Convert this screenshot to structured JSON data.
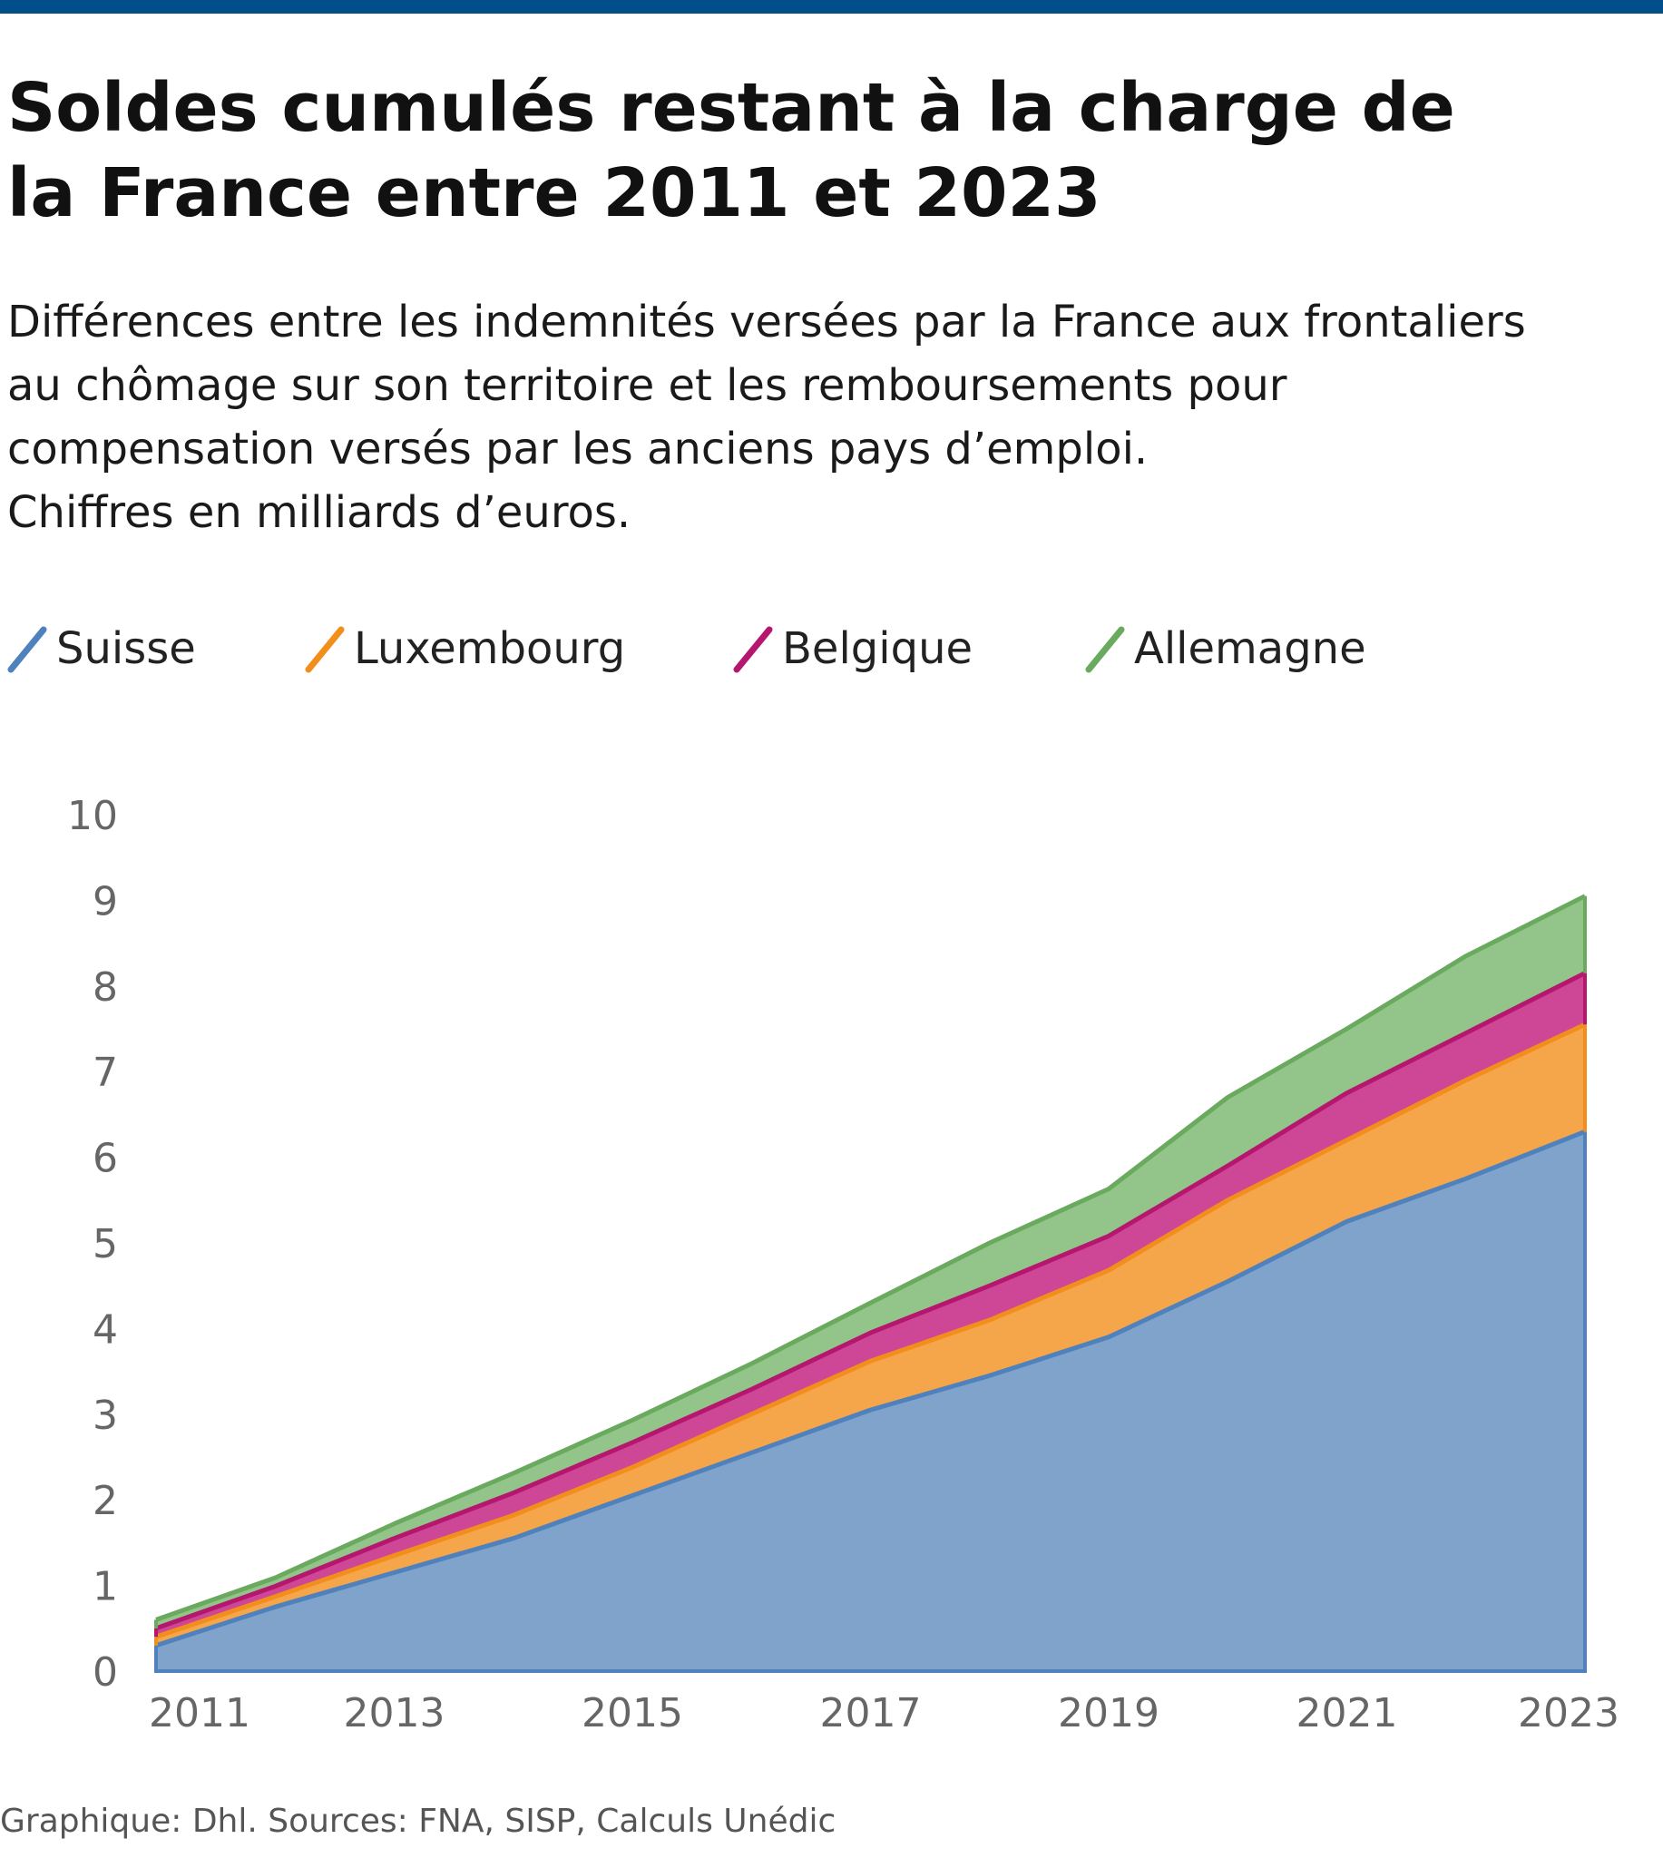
{
  "title_line1": "Soldes cumulés restant à la charge de",
  "title_line2": "la France entre 2011 et 2023",
  "subtitle_lines": [
    "Différences entre les indemnités versées par la France aux frontaliers",
    "au chômage sur son territoire et les remboursements pour",
    "compensation versés par les anciens pays d’emploi.",
    "Chiffres en milliards d’euros."
  ],
  "source": "Graphique: Dhl. Sources:  FNA, SISP, Calculs Unédic",
  "chart_data": {
    "type": "area",
    "stacked": true,
    "x": [
      2011,
      2012,
      2013,
      2014,
      2015,
      2016,
      2017,
      2018,
      2019,
      2020,
      2021,
      2022,
      2023
    ],
    "xticks": [
      "2011",
      "2013",
      "2015",
      "2017",
      "2019",
      "2021",
      "2023"
    ],
    "yticks": [
      "0",
      "1",
      "2",
      "3",
      "4",
      "5",
      "6",
      "7",
      "8",
      "9",
      "10"
    ],
    "ylim": [
      0,
      10
    ],
    "xlim": [
      2011,
      2023
    ],
    "legend_position": "top",
    "grid": false,
    "series": [
      {
        "name": "Suisse",
        "color": "#4f81bd",
        "fill": "#7fa3cb",
        "values": [
          0.3,
          0.75,
          1.15,
          1.55,
          2.05,
          2.55,
          3.05,
          3.45,
          3.9,
          4.55,
          5.25,
          5.75,
          6.3
        ]
      },
      {
        "name": "Luxembourg",
        "color": "#f28e1c",
        "fill": "#f5a54a",
        "values": [
          0.1,
          0.12,
          0.2,
          0.27,
          0.33,
          0.45,
          0.57,
          0.65,
          0.78,
          0.95,
          0.95,
          1.15,
          1.25
        ]
      },
      {
        "name": "Belgique",
        "color": "#b5176f",
        "fill": "#ce4796",
        "values": [
          0.1,
          0.12,
          0.2,
          0.26,
          0.29,
          0.29,
          0.33,
          0.4,
          0.4,
          0.4,
          0.55,
          0.55,
          0.6
        ]
      },
      {
        "name": "Allemagne",
        "color": "#6aaa5e",
        "fill": "#93c48a",
        "values": [
          0.1,
          0.1,
          0.17,
          0.23,
          0.26,
          0.3,
          0.35,
          0.5,
          0.55,
          0.8,
          0.75,
          0.9,
          0.9
        ]
      }
    ]
  }
}
